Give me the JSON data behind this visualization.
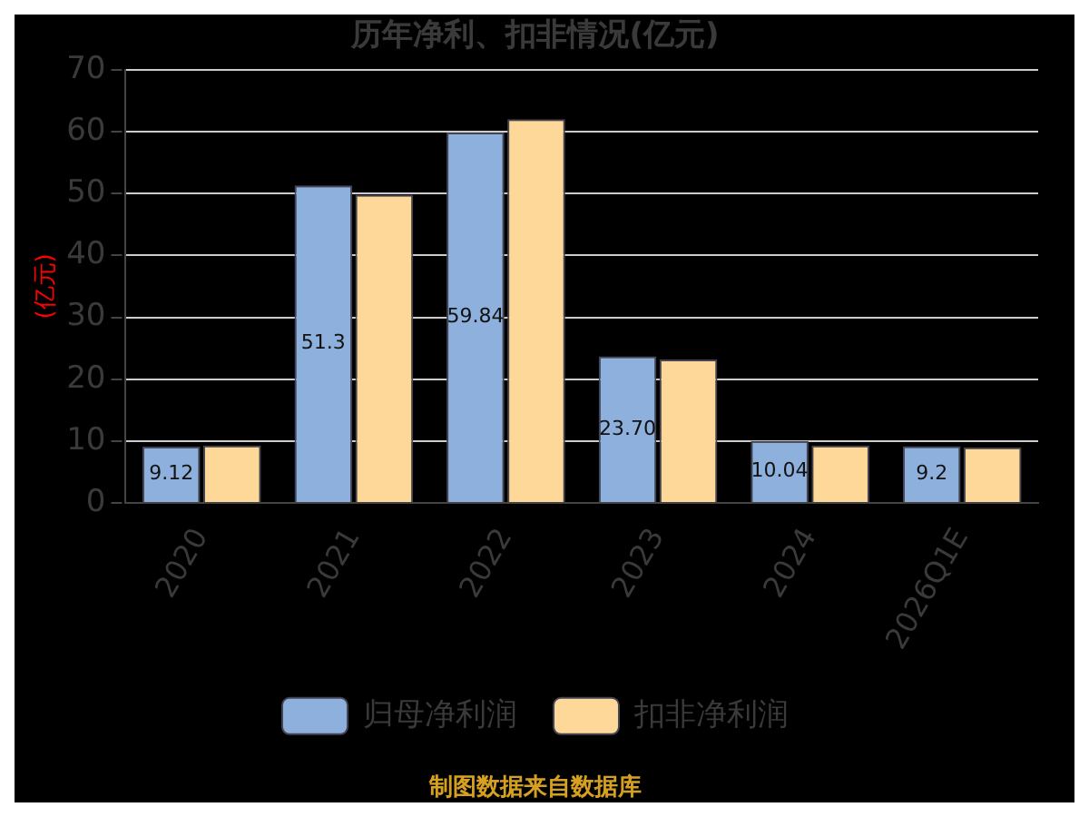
{
  "chart_data": {
    "type": "bar",
    "title": "历年净利、扣非情况(亿元)",
    "ylabel": "(亿元)",
    "categories": [
      "2020",
      "2021",
      "2022",
      "2023",
      "2024",
      "2026Q1E"
    ],
    "series": [
      {
        "name": "归母净利润",
        "color": "#8eb0dc",
        "values": [
          9.12,
          51.3,
          59.84,
          23.7,
          10.04,
          9.2
        ],
        "value_labels": [
          "9.12",
          "51.3",
          "59.84",
          "23.70",
          "10.04",
          "9.2"
        ]
      },
      {
        "name": "扣非净利润",
        "color": "#fed898",
        "values": [
          9.3,
          49.8,
          62,
          23.2,
          9.3,
          9.0
        ]
      }
    ],
    "ylim": [
      0,
      70
    ],
    "yticks": [
      0,
      10,
      20,
      30,
      40,
      50,
      60,
      70
    ],
    "grid": "y",
    "legend": "bottom",
    "annotations": [
      "制图数据来自数据库"
    ]
  }
}
